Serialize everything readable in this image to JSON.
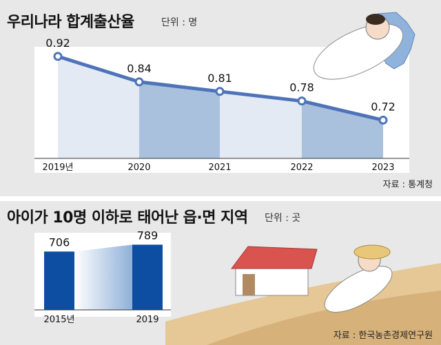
{
  "chart_data": [
    {
      "type": "area",
      "title": "우리나라 합계출산율",
      "unit": "단위 : 명",
      "source": "자료 : 통계청",
      "categories": [
        "2019년",
        "2020",
        "2021",
        "2022",
        "2023"
      ],
      "values": [
        0.92,
        0.84,
        0.81,
        0.78,
        0.72
      ],
      "value_labels": [
        "0.92",
        "0.84",
        "0.81",
        "0.78",
        "0.72"
      ],
      "ylim": [
        0.6,
        0.95
      ],
      "colors": {
        "line": "#4f73b8",
        "area_light": "#e3eaf3",
        "area_dark": "#a9c1dc",
        "marker_fill": "#ffffff"
      }
    },
    {
      "type": "bar",
      "title": "아이가 10명 이하로 태어난 읍·면 지역",
      "unit": "단위 : 곳",
      "source": "자료 : 한국농촌경제연구원",
      "categories": [
        "2015년",
        "2019"
      ],
      "values": [
        706,
        789
      ],
      "value_labels": [
        "706",
        "789"
      ],
      "ylim": [
        0,
        900
      ],
      "colors": {
        "bar": "#0d4ea3"
      }
    }
  ]
}
